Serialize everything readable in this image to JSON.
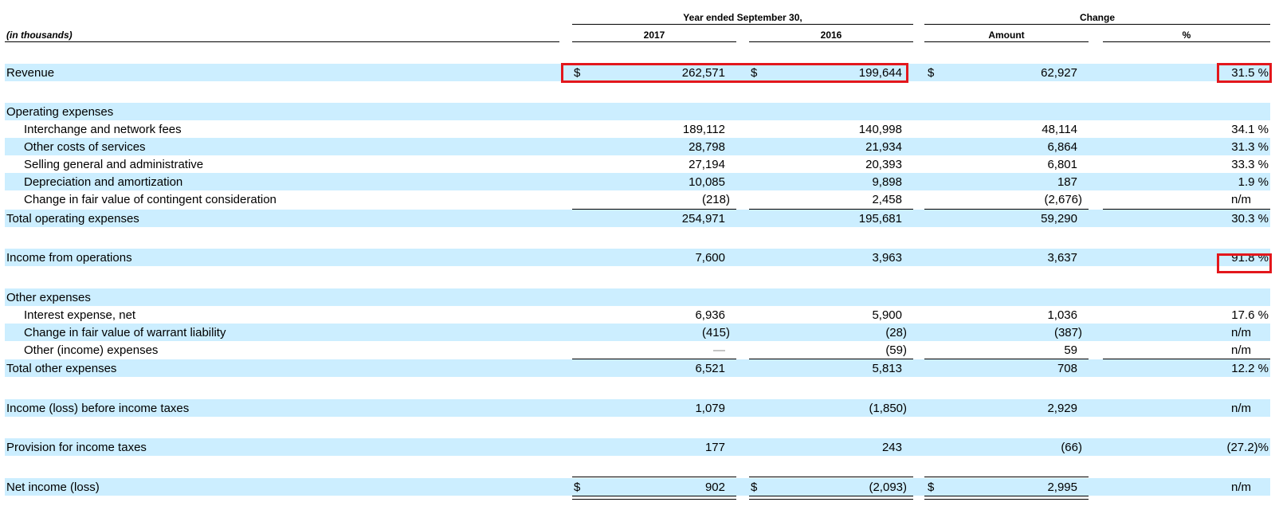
{
  "header": {
    "in_thousands": "(in thousands)",
    "year_ended": "Year ended September 30,",
    "change": "Change",
    "col_2017": "2017",
    "col_2016": "2016",
    "col_amount": "Amount",
    "col_pct": "%"
  },
  "currency": "$",
  "rows": {
    "revenue": {
      "label": "Revenue",
      "v2017": "262,571",
      "v2016": "199,644",
      "amount": "62,927",
      "pct": "31.5 %"
    },
    "opex_head": {
      "label": "Operating expenses"
    },
    "interchange": {
      "label": "Interchange and network fees",
      "v2017": "189,112",
      "v2016": "140,998",
      "amount": "48,114",
      "pct": "34.1 %"
    },
    "other_costs": {
      "label": "Other costs of services",
      "v2017": "28,798",
      "v2016": "21,934",
      "amount": "6,864",
      "pct": "31.3 %"
    },
    "sga": {
      "label": "Selling general and administrative",
      "v2017": "27,194",
      "v2016": "20,393",
      "amount": "6,801",
      "pct": "33.3 %"
    },
    "dep": {
      "label": "Depreciation and amortization",
      "v2017": "10,085",
      "v2016": "9,898",
      "amount": "187",
      "pct": "1.9 %"
    },
    "contingent": {
      "label": "Change in fair value of contingent consideration",
      "v2017": "(218)",
      "v2016": "2,458",
      "amount": "(2,676)",
      "pct": "n/m"
    },
    "total_opex": {
      "label": "Total operating expenses",
      "v2017": "254,971",
      "v2016": "195,681",
      "amount": "59,290",
      "pct": "30.3 %"
    },
    "income_ops": {
      "label": "Income from operations",
      "v2017": "7,600",
      "v2016": "3,963",
      "amount": "3,637",
      "pct": "91.8 %"
    },
    "other_head": {
      "label": "Other expenses"
    },
    "interest": {
      "label": "Interest expense, net",
      "v2017": "6,936",
      "v2016": "5,900",
      "amount": "1,036",
      "pct": "17.6 %"
    },
    "warrant": {
      "label": "Change in fair value of warrant liability",
      "v2017": "(415)",
      "v2016": "(28)",
      "amount": "(387)",
      "pct": "n/m"
    },
    "other_income": {
      "label": "Other (income) expenses",
      "v2017": "—",
      "v2016": "(59)",
      "amount": "59",
      "pct": "n/m"
    },
    "total_other": {
      "label": "Total other expenses",
      "v2017": "6,521",
      "v2016": "5,813",
      "amount": "708",
      "pct": "12.2 %"
    },
    "pretax": {
      "label": "Income (loss) before income taxes",
      "v2017": "1,079",
      "v2016": "(1,850)",
      "amount": "2,929",
      "pct": "n/m"
    },
    "provision": {
      "label": "Provision for income taxes",
      "v2017": "177",
      "v2016": "243",
      "amount": "(66)",
      "pct": "(27.2)%"
    },
    "net": {
      "label": "Net income (loss)",
      "v2017": "902",
      "v2016": "(2,093)",
      "amount": "2,995",
      "pct": "n/m"
    }
  },
  "colors": {
    "band": "#cceeff",
    "highlight": "#e3171c"
  }
}
